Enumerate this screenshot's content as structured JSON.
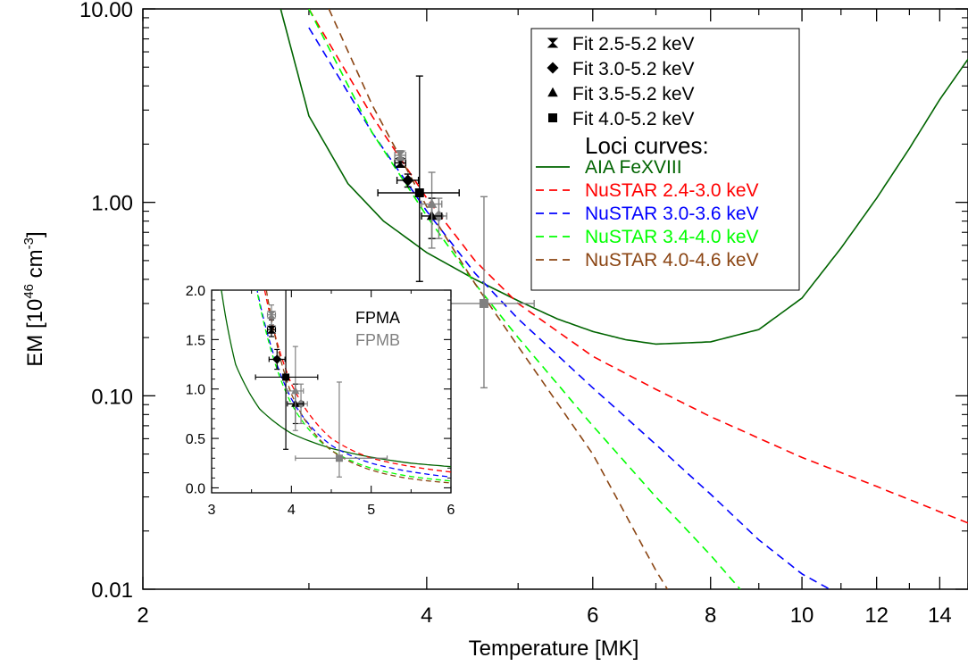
{
  "chart_data": [
    {
      "type": "line",
      "title": "",
      "xlabel": "Temperature [MK]",
      "ylabel_main": "EM [10",
      "ylabel_exp1": "46",
      "ylabel_mid": " cm",
      "ylabel_exp2": "-3",
      "ylabel_end": "]",
      "xscale": "log",
      "yscale": "log",
      "xlim": [
        2.0,
        15.0
      ],
      "ylim": [
        0.01,
        10.0
      ],
      "xticks": [
        {
          "v": 2,
          "label": "2"
        },
        {
          "v": 4,
          "label": "4"
        },
        {
          "v": 6,
          "label": "6"
        },
        {
          "v": 8,
          "label": "8"
        },
        {
          "v": 10,
          "label": "10"
        },
        {
          "v": 12,
          "label": "12"
        },
        {
          "v": 14,
          "label": "14"
        }
      ],
      "yticks": [
        {
          "v": 0.01,
          "label": "0.01"
        },
        {
          "v": 0.1,
          "label": "0.10"
        },
        {
          "v": 1,
          "label": "1.00"
        },
        {
          "v": 10,
          "label": "10.00"
        }
      ],
      "legend_position": "top-right",
      "legend": {
        "points_labels": [
          "Fit 2.5-5.2 keV",
          "Fit 3.0-5.2 keV",
          "Fit 3.5-5.2 keV",
          "Fit 4.0-5.2 keV"
        ],
        "curves_header": "Loci curves:"
      },
      "series": [
        {
          "name": "AIA FeXVIII",
          "color": "#006400",
          "style": "solid",
          "x": [
            2.8,
            3.0,
            3.3,
            3.6,
            4.0,
            4.5,
            5.0,
            5.5,
            6.0,
            6.5,
            7.0,
            8.0,
            9.0,
            10.0,
            11.0,
            12.0,
            13.0,
            14.0,
            15.0
          ],
          "y": [
            10.0,
            2.8,
            1.25,
            0.8,
            0.55,
            0.4,
            0.31,
            0.25,
            0.215,
            0.195,
            0.185,
            0.19,
            0.22,
            0.32,
            0.58,
            1.05,
            1.9,
            3.4,
            5.5
          ]
        },
        {
          "name": "NuSTAR 2.4-3.0 keV",
          "color": "#ff0000",
          "style": "dashed",
          "x": [
            3.0,
            3.5,
            4.0,
            4.5,
            5.0,
            6.0,
            7.0,
            8.0,
            10.0,
            12.0,
            15.0
          ],
          "y": [
            10.0,
            2.8,
            1.05,
            0.5,
            0.3,
            0.16,
            0.108,
            0.078,
            0.048,
            0.034,
            0.022
          ]
        },
        {
          "name": "NuSTAR 3.0-3.6 keV",
          "color": "#0000ff",
          "style": "dashed",
          "x": [
            3.0,
            3.5,
            4.0,
            4.5,
            5.0,
            6.0,
            7.0,
            8.0,
            9.0,
            10.0,
            10.7
          ],
          "y": [
            8.0,
            2.3,
            0.9,
            0.43,
            0.25,
            0.11,
            0.056,
            0.031,
            0.018,
            0.012,
            0.01
          ]
        },
        {
          "name": "NuSTAR 3.4-4.0 keV",
          "color": "#00ff00",
          "style": "dashed",
          "x": [
            3.0,
            3.5,
            4.0,
            4.5,
            5.0,
            6.0,
            7.0,
            8.0,
            8.6
          ],
          "y": [
            10.0,
            2.3,
            0.85,
            0.38,
            0.2,
            0.07,
            0.03,
            0.015,
            0.01
          ]
        },
        {
          "name": "NuSTAR 4.0-4.6 keV",
          "color": "#8b4513",
          "style": "dashed",
          "x": [
            3.15,
            3.5,
            4.0,
            4.5,
            5.0,
            6.0,
            7.0,
            7.2
          ],
          "y": [
            10.0,
            3.2,
            0.95,
            0.38,
            0.18,
            0.05,
            0.0125,
            0.01
          ]
        }
      ],
      "points": [
        {
          "name": "Fit 2.5-5.2 keV",
          "det": "FPMA",
          "marker": "hourglass",
          "x": 3.75,
          "y": 1.6,
          "xerr": [
            0.05,
            0.05
          ],
          "yerr": [
            0.07,
            0.1
          ]
        },
        {
          "name": "Fit 2.5-5.2 keV",
          "det": "FPMB",
          "marker": "hourglass",
          "x": 3.75,
          "y": 1.75,
          "xerr": [
            0.05,
            0.05
          ],
          "yerr": [
            0.1,
            0.1
          ]
        },
        {
          "name": "Fit 3.0-5.2 keV",
          "det": "FPMA",
          "marker": "diamond",
          "x": 3.82,
          "y": 1.3,
          "xerr": [
            0.1,
            0.1
          ],
          "yerr": [
            0.1,
            0.1
          ]
        },
        {
          "name": "Fit 3.0-5.2 keV",
          "det": "FPMB",
          "marker": "diamond",
          "x": 4.12,
          "y": 0.85,
          "xerr": [
            0.08,
            0.08
          ],
          "yerr": [
            0.2,
            0.2
          ]
        },
        {
          "name": "Fit 3.5-5.2 keV",
          "det": "FPMA",
          "marker": "triangle",
          "x": 4.05,
          "y": 0.85,
          "xerr": [
            0.1,
            0.1
          ],
          "yerr": [
            0.2,
            0.2
          ]
        },
        {
          "name": "Fit 3.5-5.2 keV",
          "det": "FPMB",
          "marker": "triangle",
          "x": 4.05,
          "y": 0.98,
          "xerr": [
            0.1,
            0.1
          ],
          "yerr": [
            0.4,
            0.45
          ]
        },
        {
          "name": "Fit 4.0-5.2 keV",
          "det": "FPMA",
          "marker": "square",
          "x": 3.93,
          "y": 1.12,
          "xerr": [
            0.38,
            0.4
          ],
          "yerr": [
            0.73,
            3.38
          ]
        },
        {
          "name": "Fit 4.0-5.2 keV",
          "det": "FPMB",
          "marker": "square",
          "x": 4.6,
          "y": 0.3,
          "xerr": [
            0.55,
            0.6
          ],
          "yerr": [
            0.19,
            0.77
          ]
        }
      ],
      "colors": {
        "FPMA": "#000000",
        "FPMB": "#808080"
      }
    },
    {
      "type": "line",
      "xscale": "linear",
      "yscale": "linear",
      "xlim": [
        3.0,
        6.0
      ],
      "ylim": [
        -0.05,
        2.0
      ],
      "xticks": [
        {
          "v": 3,
          "label": "3"
        },
        {
          "v": 4,
          "label": "4"
        },
        {
          "v": 5,
          "label": "5"
        },
        {
          "v": 6,
          "label": "6"
        }
      ],
      "yticks": [
        {
          "v": 0.0,
          "label": "0.0"
        },
        {
          "v": 0.5,
          "label": "0.5"
        },
        {
          "v": 1.0,
          "label": "1.0"
        },
        {
          "v": 1.5,
          "label": "1.5"
        },
        {
          "v": 2.0,
          "label": "2.0"
        }
      ],
      "legend_position": "top-right",
      "legend": {
        "labels": [
          "FPMA",
          "FPMB"
        ],
        "colors": [
          "#000000",
          "#808080"
        ]
      }
    }
  ]
}
